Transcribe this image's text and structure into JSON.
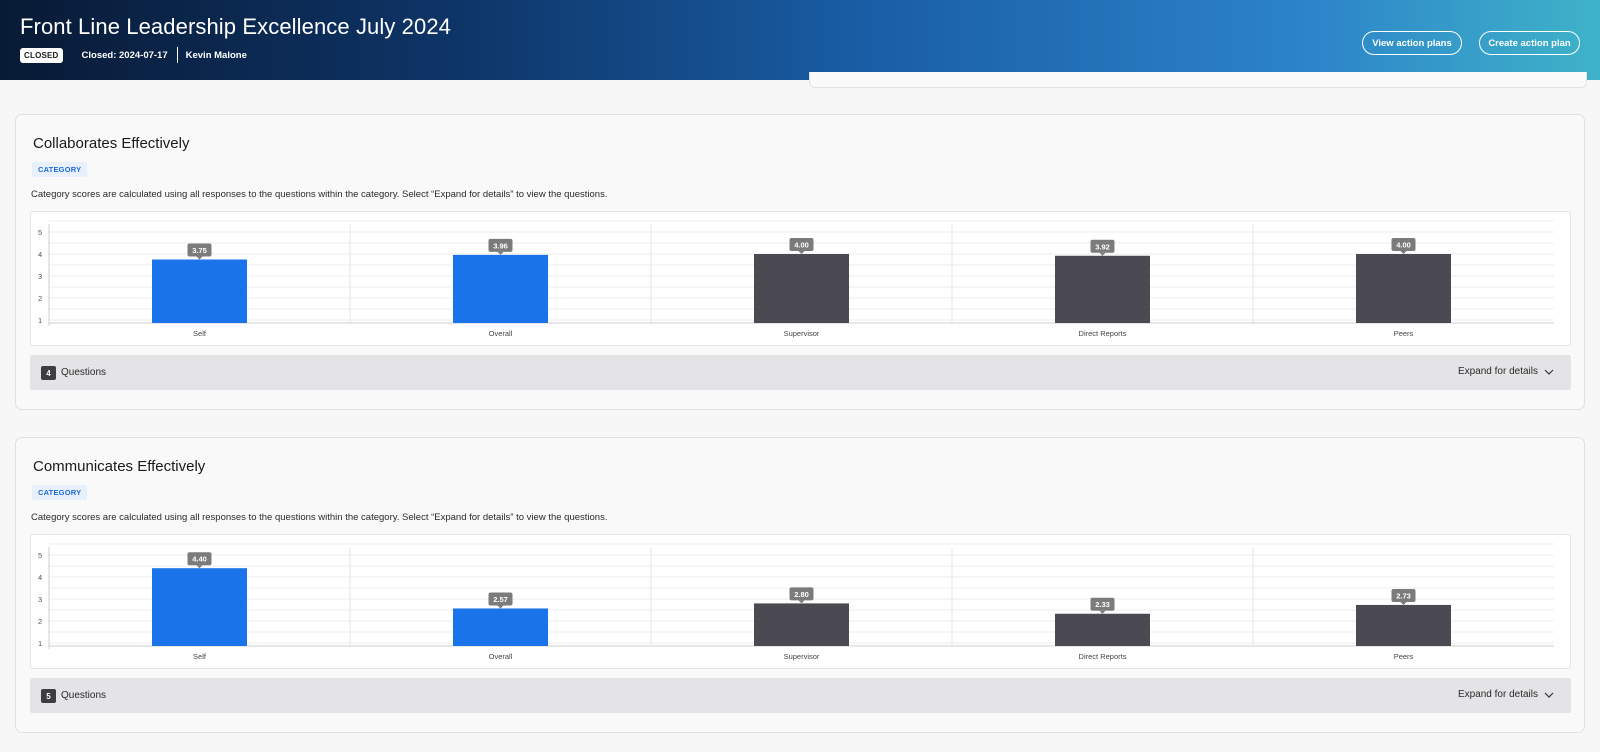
{
  "header": {
    "title": "Front Line Leadership Excellence July 2024",
    "status": "CLOSED",
    "closed_date": "Closed: 2024-07-17",
    "owner": "Kevin Malone",
    "view_plans_label": "View action plans",
    "create_plan_label": "Create action plan"
  },
  "colors": {
    "self_overall": "#1a73e8",
    "other": "#4b4a52"
  },
  "cards": [
    {
      "title": "Collaborates Effectively",
      "tag": "CATEGORY",
      "description": "Category scores are calculated using all responses to the questions within the category. Select “Expand for details” to view the questions.",
      "question_count": "4",
      "questions_label": "Questions",
      "expand_label": "Expand for details"
    },
    {
      "title": "Communicates Effectively",
      "tag": "CATEGORY",
      "description": "Category scores are calculated using all responses to the questions within the category. Select “Expand for details” to view the questions.",
      "question_count": "5",
      "questions_label": "Questions",
      "expand_label": "Expand for details"
    }
  ],
  "chart_data": [
    {
      "type": "bar",
      "title": "Collaborates Effectively",
      "categories": [
        "Self",
        "Overall",
        "Supervisor",
        "Direct Reports",
        "Peers"
      ],
      "values": [
        3.75,
        3.96,
        4.0,
        3.92,
        4.0
      ],
      "labels": [
        "3.75",
        "3.96",
        "4.00",
        "3.92",
        "4.00"
      ],
      "ylim": [
        1,
        5
      ],
      "yticks": [
        "1",
        "2",
        "3",
        "4",
        "5"
      ]
    },
    {
      "type": "bar",
      "title": "Communicates Effectively",
      "categories": [
        "Self",
        "Overall",
        "Supervisor",
        "Direct Reports",
        "Peers"
      ],
      "values": [
        4.4,
        2.57,
        2.8,
        2.33,
        2.73
      ],
      "labels": [
        "4.40",
        "2.57",
        "2.80",
        "2.33",
        "2.73"
      ],
      "ylim": [
        1,
        5
      ],
      "yticks": [
        "1",
        "2",
        "3",
        "4",
        "5"
      ]
    }
  ]
}
